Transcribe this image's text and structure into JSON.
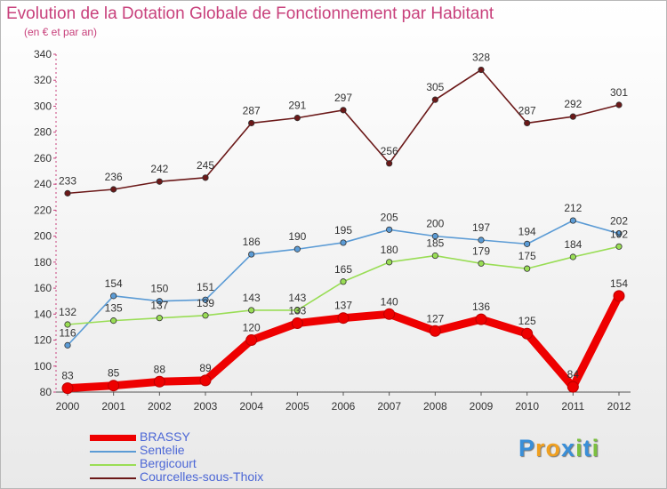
{
  "page": {
    "title": "Evolution de la Dotation Globale de Fonctionnement par Habitant",
    "subtitle": "(en € et par an)"
  },
  "chart_data": {
    "type": "line",
    "title": "Evolution de la Dotation Globale de Fonctionnement par Habitant",
    "subtitle": "(en € et par an)",
    "xlabel": "",
    "ylabel": "",
    "ylim": [
      80,
      340
    ],
    "yticks": [
      80,
      100,
      120,
      140,
      160,
      180,
      200,
      220,
      240,
      260,
      280,
      300,
      320,
      340
    ],
    "grid": false,
    "legend_position": "bottom-left",
    "categories": [
      "2000",
      "2001",
      "2002",
      "2003",
      "2004",
      "2005",
      "2006",
      "2007",
      "2008",
      "2009",
      "2010",
      "2011",
      "2012"
    ],
    "series": [
      {
        "name": "Courcelles-sous-Thoix",
        "color": "#6b1818",
        "values": [
          233,
          236,
          242,
          245,
          287,
          291,
          297,
          256,
          305,
          328,
          287,
          292,
          301
        ],
        "labels": [
          "233",
          "236",
          "242",
          "245",
          "287",
          "291",
          "297",
          "256",
          "305",
          "328",
          "287",
          "292",
          "301"
        ]
      },
      {
        "name": "Sentelie",
        "color": "#5b9bd5",
        "values": [
          116,
          154,
          150,
          151,
          186,
          190,
          195,
          205,
          200,
          197,
          194,
          212,
          202
        ],
        "labels": [
          "116",
          "154",
          "150",
          "151",
          "186",
          "190",
          "195",
          "205",
          "200",
          "197",
          "194",
          "212",
          "202"
        ]
      },
      {
        "name": "Bergicourt",
        "color": "#99dd55",
        "values": [
          132,
          135,
          137,
          139,
          143,
          143,
          165,
          180,
          185,
          179,
          175,
          184,
          192
        ],
        "labels": [
          "132",
          "135",
          "137",
          "139",
          "143",
          "143",
          "165",
          "180",
          "185",
          "179",
          "175",
          "184",
          "192"
        ]
      },
      {
        "name": "BRASSY",
        "color": "#ee0000",
        "values": [
          83,
          85,
          88,
          89,
          120,
          133,
          137,
          140,
          127,
          136,
          125,
          84,
          154
        ],
        "labels": [
          "83",
          "85",
          "88",
          "89",
          "120",
          "133",
          "137",
          "140",
          "127",
          "136",
          "125",
          "84",
          "154"
        ]
      }
    ]
  },
  "legend": {
    "items": [
      {
        "name": "BRASSY",
        "color": "#ee0000"
      },
      {
        "name": "Sentelie",
        "color": "#5b9bd5"
      },
      {
        "name": "Bergicourt",
        "color": "#99dd55"
      },
      {
        "name": "Courcelles-sous-Thoix",
        "color": "#6b1818"
      }
    ]
  },
  "logo": {
    "letters": [
      "P",
      "r",
      "o",
      "x",
      "i",
      "t",
      "i"
    ],
    "colors": [
      "#3a8fd8",
      "#f0a020",
      "#f0a020",
      "#3a8fd8",
      "#7cc040",
      "#3a8fd8",
      "#7cc040"
    ]
  }
}
